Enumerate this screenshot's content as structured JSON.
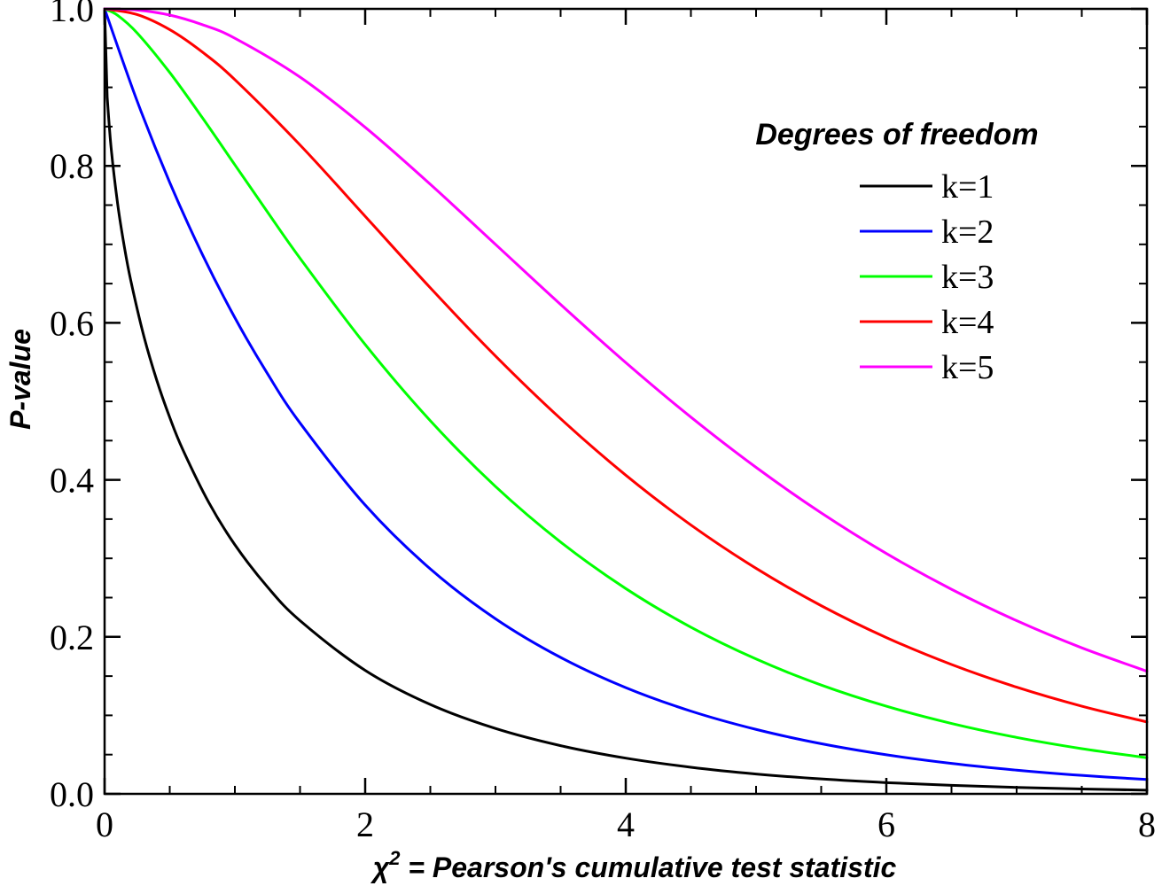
{
  "chart_data": {
    "type": "line",
    "xlabel_prefix": "χ",
    "xlabel_sup": "2",
    "xlabel_rest": " = Pearson's cumulative test statistic",
    "ylabel": "P-value",
    "xlim": [
      0,
      8
    ],
    "ylim": [
      0,
      1
    ],
    "x_ticks": [
      0,
      2,
      4,
      6,
      8
    ],
    "x_tick_labels": [
      "0",
      "2",
      "4",
      "6",
      "8"
    ],
    "y_ticks": [
      0.0,
      0.2,
      0.4,
      0.6,
      0.8,
      1.0
    ],
    "y_tick_labels": [
      "0.0",
      "0.2",
      "0.4",
      "0.6",
      "0.8",
      "1.0"
    ],
    "grid": false,
    "legend": {
      "title": "Degrees of freedom",
      "placement": "top-right"
    },
    "series": [
      {
        "name": "k=1",
        "color": "#000000",
        "x": [
          0.02,
          0.05,
          0.1,
          0.15,
          0.2,
          0.3,
          0.4,
          0.5,
          0.6,
          0.8,
          1.0,
          1.25,
          1.5,
          2.0,
          2.5,
          3.0,
          3.5,
          4.0,
          4.5,
          5.0,
          5.5,
          6.0,
          6.5,
          7.0,
          7.5,
          8.0
        ],
        "y": [
          0.8875,
          0.8231,
          0.7518,
          0.6985,
          0.6547,
          0.5839,
          0.5271,
          0.4795,
          0.4386,
          0.3711,
          0.3173,
          0.2636,
          0.2207,
          0.1573,
          0.1138,
          0.0833,
          0.0614,
          0.0455,
          0.0339,
          0.0253,
          0.019,
          0.0143,
          0.0108,
          0.0082,
          0.0062,
          0.0047
        ]
      },
      {
        "name": "k=2",
        "color": "#0000ff",
        "x": [
          0,
          0.25,
          0.5,
          0.75,
          1.0,
          1.25,
          1.5,
          2.0,
          2.5,
          3.0,
          3.5,
          4.0,
          4.5,
          5.0,
          5.5,
          6.0,
          6.5,
          7.0,
          7.5,
          8.0
        ],
        "y": [
          1.0,
          0.8825,
          0.7788,
          0.6873,
          0.6065,
          0.5353,
          0.4724,
          0.3679,
          0.2865,
          0.2231,
          0.1738,
          0.1353,
          0.1054,
          0.0821,
          0.0639,
          0.0498,
          0.0388,
          0.0302,
          0.0235,
          0.0183
        ]
      },
      {
        "name": "k=3",
        "color": "#00ff00",
        "x": [
          0,
          0.1,
          0.25,
          0.5,
          0.75,
          1.0,
          1.25,
          1.5,
          2.0,
          2.5,
          3.0,
          3.5,
          4.0,
          4.5,
          5.0,
          5.5,
          6.0,
          6.5,
          7.0,
          7.5,
          8.0
        ],
        "y": [
          1.0,
          0.9918,
          0.9693,
          0.9189,
          0.8614,
          0.8013,
          0.7413,
          0.6823,
          0.5724,
          0.4753,
          0.3916,
          0.3208,
          0.2615,
          0.2123,
          0.1718,
          0.1386,
          0.1116,
          0.0897,
          0.0719,
          0.0576,
          0.046
        ]
      },
      {
        "name": "k=4",
        "color": "#ff0000",
        "x": [
          0,
          0.25,
          0.5,
          0.75,
          1.0,
          1.5,
          2.0,
          2.5,
          3.0,
          3.5,
          4.0,
          4.5,
          5.0,
          5.5,
          6.0,
          6.5,
          7.0,
          7.5,
          8.0
        ],
        "y": [
          1.0,
          0.9927,
          0.9735,
          0.945,
          0.9098,
          0.8266,
          0.7358,
          0.6446,
          0.5578,
          0.4779,
          0.406,
          0.3425,
          0.2873,
          0.2397,
          0.1991,
          0.1648,
          0.1359,
          0.1117,
          0.0916
        ]
      },
      {
        "name": "k=5",
        "color": "#ff00ff",
        "x": [
          0,
          0.25,
          0.5,
          0.75,
          1.0,
          1.5,
          2.0,
          2.5,
          3.0,
          3.5,
          4.0,
          4.5,
          5.0,
          5.5,
          6.0,
          6.5,
          7.0,
          7.5,
          8.0
        ],
        "y": [
          1.0,
          0.9985,
          0.9921,
          0.9799,
          0.9626,
          0.9131,
          0.8491,
          0.7765,
          0.7,
          0.6234,
          0.5494,
          0.4799,
          0.4159,
          0.3579,
          0.3062,
          0.2606,
          0.2206,
          0.186,
          0.1562
        ]
      }
    ]
  }
}
